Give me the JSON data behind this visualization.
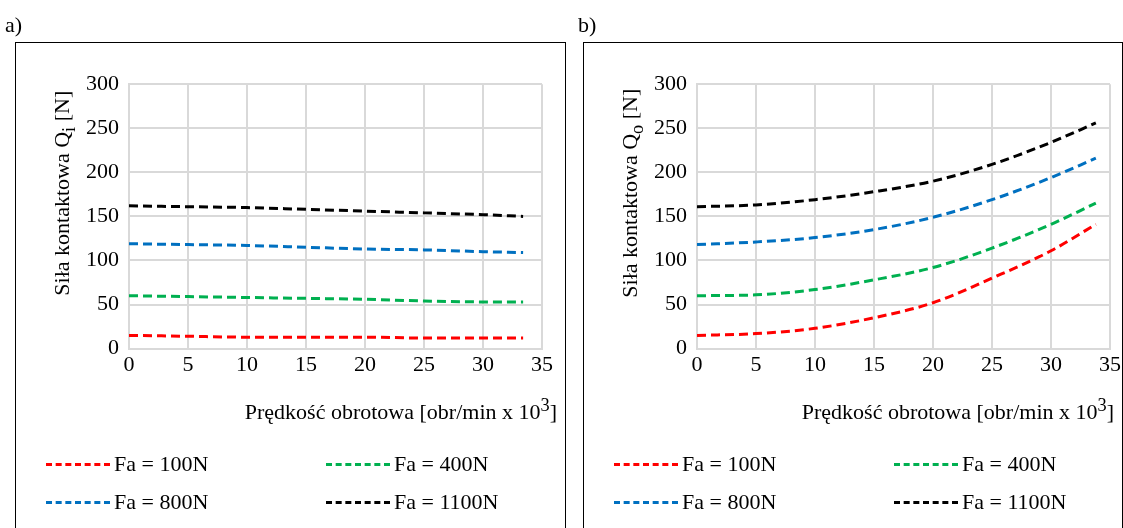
{
  "chart_data": [
    {
      "type": "line",
      "annotations": [
        "a)"
      ],
      "xlabel": "Prędkość obrotowa [obr/min x 10$^{3}$]",
      "ylabel": "Siła kontaktowa Q$_{i}$ [N]",
      "x": [
        0,
        5,
        10,
        15,
        20,
        25,
        30,
        33.4
      ],
      "series": [
        {
          "name": "Fa = 100N",
          "color": "#ff0000",
          "values": [
            15,
            14,
            13,
            13,
            13,
            12,
            12,
            12
          ]
        },
        {
          "name": "Fa = 400N",
          "color": "#00b050",
          "values": [
            60,
            59,
            58,
            57,
            56,
            54,
            53,
            53
          ]
        },
        {
          "name": "Fa = 800N",
          "color": "#0070c0",
          "values": [
            119,
            118,
            117,
            115,
            113,
            112,
            110,
            109
          ]
        },
        {
          "name": "Fa = 1100N",
          "color": "#000000",
          "values": [
            162,
            161,
            160,
            158,
            156,
            154,
            152,
            150
          ]
        }
      ],
      "xlim": [
        0,
        35
      ],
      "xticks": [
        0,
        5,
        10,
        15,
        20,
        25,
        30,
        35
      ],
      "ylim": [
        0,
        300
      ],
      "yticks": [
        0,
        50,
        100,
        150,
        200,
        250,
        300
      ],
      "grid": true,
      "legend": "bottom",
      "marker": "none",
      "line_style": "dashed"
    },
    {
      "type": "line",
      "annotations": [
        "b)"
      ],
      "xlabel": "Prędkość obrotowa [obr/min x 10$^{3}$]",
      "ylabel": "Siła kontaktowa Q$_{o}$ [N]",
      "x": [
        0,
        5,
        10,
        15,
        20,
        25,
        30,
        33.8
      ],
      "series": [
        {
          "name": "Fa = 100N",
          "color": "#ff0000",
          "values": [
            15,
            17,
            23,
            35,
            52,
            80,
            111,
            141
          ]
        },
        {
          "name": "Fa = 400N",
          "color": "#00b050",
          "values": [
            60,
            61,
            67,
            78,
            92,
            114,
            141,
            165
          ]
        },
        {
          "name": "Fa = 800N",
          "color": "#0070c0",
          "values": [
            118,
            121,
            126,
            135,
            149,
            169,
            194,
            216
          ]
        },
        {
          "name": "Fa = 1100N",
          "color": "#000000",
          "values": [
            161,
            163,
            169,
            178,
            190,
            209,
            234,
            256
          ]
        }
      ],
      "xlim": [
        0,
        35
      ],
      "xticks": [
        0,
        5,
        10,
        15,
        20,
        25,
        30,
        35
      ],
      "ylim": [
        0,
        300
      ],
      "yticks": [
        0,
        50,
        100,
        150,
        200,
        250,
        300
      ],
      "grid": true,
      "legend": "bottom",
      "marker": "none",
      "line_style": "dashed"
    }
  ]
}
